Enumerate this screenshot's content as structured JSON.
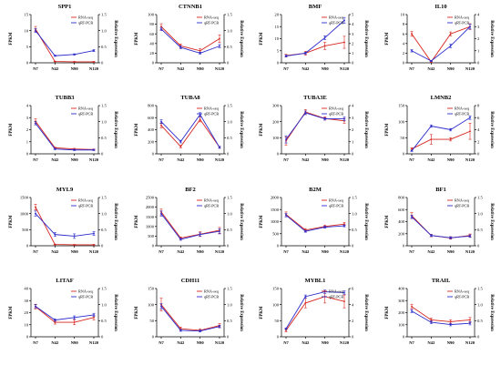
{
  "colors": {
    "rna": "#d7261e",
    "qpcr": "#2b2bcc",
    "axis": "#000000"
  },
  "legend": {
    "rna": "RNA-seq",
    "qpcr": "qRT-PCR"
  },
  "chart_data": [
    {
      "type": "line",
      "title": "SPP1",
      "ylabel": "FPKM",
      "y2label": "Relative Expression",
      "categories": [
        "N7",
        "N42",
        "N90",
        "N120"
      ],
      "ylim": [
        0,
        15
      ],
      "yticks": [
        "0",
        "5",
        "10",
        "15"
      ],
      "y2lim": [
        0,
        1.5
      ],
      "y2ticks": [
        "0",
        "0.5",
        "1.0",
        "1.5"
      ],
      "series": [
        {
          "name": "RNA-seq",
          "values": [
            10.5,
            0.4,
            0.3,
            0.3
          ],
          "errors": [
            0.8,
            0.1,
            0.1,
            0.1
          ]
        },
        {
          "name": "qRT-PCR",
          "values": [
            1.0,
            0.22,
            0.26,
            0.38
          ],
          "errors": [
            0.06,
            0.02,
            0.02,
            0.03
          ]
        }
      ]
    },
    {
      "type": "line",
      "title": "CTNNB1",
      "ylabel": "FPKM",
      "y2label": "Relative Expression",
      "categories": [
        "N7",
        "N42",
        "N90",
        "N120"
      ],
      "ylim": [
        0,
        100
      ],
      "yticks": [
        "0",
        "20",
        "40",
        "60",
        "80",
        "100"
      ],
      "y2lim": [
        0,
        1.5
      ],
      "y2ticks": [
        "0",
        "0.5",
        "1.0",
        "1.5"
      ],
      "series": [
        {
          "name": "RNA-seq",
          "values": [
            75,
            35,
            25,
            50
          ],
          "errors": [
            6,
            4,
            4,
            8
          ]
        },
        {
          "name": "qRT-PCR",
          "values": [
            1.05,
            0.48,
            0.3,
            0.52
          ],
          "errors": [
            0.05,
            0.04,
            0.03,
            0.05
          ]
        }
      ]
    },
    {
      "type": "line",
      "title": "BMF",
      "ylabel": "FPKM",
      "y2label": "Relative Expression",
      "categories": [
        "N7",
        "N42",
        "N90",
        "N120"
      ],
      "ylim": [
        0,
        20
      ],
      "yticks": [
        "0",
        "5",
        "10",
        "15",
        "20"
      ],
      "y2lim": [
        0,
        5
      ],
      "y2ticks": [
        "0",
        "1",
        "2",
        "3",
        "4",
        "5"
      ],
      "series": [
        {
          "name": "RNA-seq",
          "values": [
            3,
            4,
            7,
            8.5
          ],
          "errors": [
            0.5,
            0.8,
            1.5,
            2.5
          ]
        },
        {
          "name": "qRT-PCR",
          "values": [
            0.7,
            1.0,
            2.6,
            4.4
          ],
          "errors": [
            0.1,
            0.1,
            0.2,
            0.3
          ]
        }
      ]
    },
    {
      "type": "line",
      "title": "IL10",
      "ylabel": "FPKM",
      "y2label": "Relative Expression",
      "categories": [
        "N7",
        "N42",
        "N90",
        "N120"
      ],
      "ylim": [
        0,
        10
      ],
      "yticks": [
        "0",
        "2",
        "4",
        "6",
        "8",
        "10"
      ],
      "y2lim": [
        0,
        4
      ],
      "y2ticks": [
        "0",
        "1",
        "2",
        "3",
        "4"
      ],
      "series": [
        {
          "name": "RNA-seq",
          "values": [
            6,
            0.2,
            6,
            7.5
          ],
          "errors": [
            0.5,
            0.1,
            0.4,
            0.6
          ]
        },
        {
          "name": "qRT-PCR",
          "values": [
            1.0,
            0.15,
            1.4,
            3.0
          ],
          "errors": [
            0.1,
            0.05,
            0.15,
            0.2
          ]
        }
      ]
    },
    {
      "type": "line",
      "title": "TUBB3",
      "ylabel": "FPKM",
      "y2label": "Relative Expression",
      "categories": [
        "N7",
        "N42",
        "N90",
        "N120"
      ],
      "ylim": [
        0,
        4
      ],
      "yticks": [
        "0",
        "1",
        "2",
        "3",
        "4"
      ],
      "y2lim": [
        0,
        1.5
      ],
      "y2ticks": [
        "0",
        "0.5",
        "1.0",
        "1.5"
      ],
      "series": [
        {
          "name": "RNA-seq",
          "values": [
            2.7,
            0.5,
            0.4,
            0.35
          ],
          "errors": [
            0.2,
            0.05,
            0.05,
            0.05
          ]
        },
        {
          "name": "qRT-PCR",
          "values": [
            0.95,
            0.15,
            0.12,
            0.12
          ],
          "errors": [
            0.05,
            0.02,
            0.02,
            0.02
          ]
        }
      ]
    },
    {
      "type": "line",
      "title": "TUBA8",
      "ylabel": "FPKM",
      "y2label": "Relative Expression",
      "categories": [
        "N7",
        "N42",
        "N90",
        "N120"
      ],
      "ylim": [
        0,
        800
      ],
      "yticks": [
        "0",
        "200",
        "400",
        "600",
        "800"
      ],
      "y2lim": [
        0,
        1.5
      ],
      "y2ticks": [
        "0",
        "0.5",
        "1.0",
        "1.5"
      ],
      "series": [
        {
          "name": "RNA-seq",
          "values": [
            470,
            120,
            570,
            110
          ],
          "errors": [
            40,
            20,
            40,
            15
          ]
        },
        {
          "name": "qRT-PCR",
          "values": [
            1.0,
            0.38,
            1.22,
            0.2
          ],
          "errors": [
            0.06,
            0.04,
            0.06,
            0.03
          ]
        }
      ]
    },
    {
      "type": "line",
      "title": "TUBA3E",
      "ylabel": "FPKM",
      "y2label": "Relative Expression",
      "categories": [
        "N7",
        "N42",
        "N90",
        "N120"
      ],
      "ylim": [
        0,
        300
      ],
      "yticks": [
        "0",
        "100",
        "200",
        "300"
      ],
      "y2lim": [
        0,
        4
      ],
      "y2ticks": [
        "0",
        "1",
        "2",
        "3",
        "4"
      ],
      "series": [
        {
          "name": "RNA-seq",
          "values": [
            80,
            260,
            220,
            205
          ],
          "errors": [
            25,
            15,
            10,
            15
          ]
        },
        {
          "name": "qRT-PCR",
          "values": [
            1.2,
            3.4,
            2.9,
            2.9
          ],
          "errors": [
            0.3,
            0.15,
            0.1,
            0.15
          ]
        }
      ]
    },
    {
      "type": "line",
      "title": "LMNB2",
      "ylabel": "FPKM",
      "y2label": "Relative Expression",
      "categories": [
        "N7",
        "N42",
        "N90",
        "N120"
      ],
      "ylim": [
        0,
        150
      ],
      "yticks": [
        "0",
        "50",
        "100",
        "150"
      ],
      "y2lim": [
        0,
        8
      ],
      "y2ticks": [
        "0",
        "2",
        "4",
        "6",
        "8"
      ],
      "series": [
        {
          "name": "RNA-seq",
          "values": [
            15,
            45,
            45,
            70
          ],
          "errors": [
            4,
            15,
            5,
            25
          ]
        },
        {
          "name": "qRT-PCR",
          "values": [
            0.5,
            4.6,
            4.0,
            6.0
          ],
          "errors": [
            0.1,
            0.2,
            0.2,
            0.3
          ]
        }
      ]
    },
    {
      "type": "line",
      "title": "MYL9",
      "ylabel": "FPKM",
      "y2label": "Relative Expression",
      "categories": [
        "N7",
        "N42",
        "N90",
        "N120"
      ],
      "ylim": [
        0,
        1500
      ],
      "yticks": [
        "0",
        "500",
        "1000",
        "1500"
      ],
      "y2lim": [
        0,
        1.5
      ],
      "y2ticks": [
        "0",
        "0.5",
        "1.0",
        "1.5"
      ],
      "series": [
        {
          "name": "RNA-seq",
          "values": [
            1200,
            40,
            30,
            30
          ],
          "errors": [
            90,
            10,
            10,
            10
          ]
        },
        {
          "name": "qRT-PCR",
          "values": [
            1.0,
            0.35,
            0.3,
            0.38
          ],
          "errors": [
            0.08,
            0.06,
            0.07,
            0.06
          ]
        }
      ]
    },
    {
      "type": "line",
      "title": "BF2",
      "ylabel": "FPKM",
      "y2label": "Relative Expression",
      "categories": [
        "N7",
        "N42",
        "N90",
        "N120"
      ],
      "ylim": [
        0,
        2500
      ],
      "yticks": [
        "0",
        "500",
        "1000",
        "1500",
        "2000",
        "2500"
      ],
      "y2lim": [
        0,
        1.5
      ],
      "y2ticks": [
        "0",
        "0.5",
        "1.0",
        "1.5"
      ],
      "series": [
        {
          "name": "RNA-seq",
          "values": [
            1750,
            400,
            600,
            800
          ],
          "errors": [
            150,
            60,
            120,
            150
          ]
        },
        {
          "name": "qRT-PCR",
          "values": [
            1.0,
            0.2,
            0.35,
            0.45
          ],
          "errors": [
            0.08,
            0.03,
            0.05,
            0.08
          ]
        }
      ]
    },
    {
      "type": "line",
      "title": "B2M",
      "ylabel": "FPKM",
      "y2label": "Relative Expression",
      "categories": [
        "N7",
        "N42",
        "N90",
        "N120"
      ],
      "ylim": [
        0,
        2000
      ],
      "yticks": [
        "0",
        "500",
        "1000",
        "1500",
        "2000"
      ],
      "y2lim": [
        0,
        1.5
      ],
      "y2ticks": [
        "0",
        "0.5",
        "1.0",
        "1.5"
      ],
      "series": [
        {
          "name": "RNA-seq",
          "values": [
            1300,
            650,
            800,
            900
          ],
          "errors": [
            100,
            60,
            60,
            60
          ]
        },
        {
          "name": "qRT-PCR",
          "values": [
            0.95,
            0.45,
            0.58,
            0.62
          ],
          "errors": [
            0.05,
            0.03,
            0.03,
            0.03
          ]
        }
      ]
    },
    {
      "type": "line",
      "title": "BF1",
      "ylabel": "FPKM",
      "y2label": "Relative Expression",
      "categories": [
        "N7",
        "N42",
        "N90",
        "N120"
      ],
      "ylim": [
        0,
        800
      ],
      "yticks": [
        "0",
        "200",
        "400",
        "600",
        "800"
      ],
      "y2lim": [
        0,
        1.5
      ],
      "y2ticks": [
        "0",
        "0.5",
        "1.0",
        "1.5"
      ],
      "series": [
        {
          "name": "RNA-seq",
          "values": [
            500,
            170,
            130,
            170
          ],
          "errors": [
            50,
            20,
            20,
            25
          ]
        },
        {
          "name": "qRT-PCR",
          "values": [
            0.9,
            0.32,
            0.25,
            0.3
          ],
          "errors": [
            0.05,
            0.03,
            0.03,
            0.04
          ]
        }
      ]
    },
    {
      "type": "line",
      "title": "LITAF",
      "ylabel": "FPKM",
      "y2label": "Relative Expression",
      "categories": [
        "N7",
        "N42",
        "N90",
        "N120"
      ],
      "ylim": [
        0,
        40
      ],
      "yticks": [
        "0",
        "10",
        "20",
        "30",
        "40"
      ],
      "y2lim": [
        0,
        1.5
      ],
      "y2ticks": [
        "0",
        "0.5",
        "1.0",
        "1.5"
      ],
      "series": [
        {
          "name": "RNA-seq",
          "values": [
            25,
            12,
            12,
            16
          ],
          "errors": [
            2,
            1.5,
            2,
            2
          ]
        },
        {
          "name": "qRT-PCR",
          "values": [
            0.95,
            0.52,
            0.6,
            0.68
          ],
          "errors": [
            0.05,
            0.04,
            0.05,
            0.05
          ]
        }
      ]
    },
    {
      "type": "line",
      "title": "CDH11",
      "ylabel": "FPKM",
      "y2label": "Relative Expression",
      "categories": [
        "N7",
        "N42",
        "N90",
        "N120"
      ],
      "ylim": [
        0,
        150
      ],
      "yticks": [
        "0",
        "50",
        "100",
        "150"
      ],
      "y2lim": [
        0,
        1.5
      ],
      "y2ticks": [
        "0",
        "0.5",
        "1.0",
        "1.5"
      ],
      "series": [
        {
          "name": "RNA-seq",
          "values": [
            100,
            25,
            20,
            35
          ],
          "errors": [
            20,
            5,
            5,
            6
          ]
        },
        {
          "name": "qRT-PCR",
          "values": [
            0.95,
            0.2,
            0.18,
            0.32
          ],
          "errors": [
            0.08,
            0.03,
            0.03,
            0.04
          ]
        }
      ]
    },
    {
      "type": "line",
      "title": "MYBL1",
      "ylabel": "FPKM",
      "y2label": "Relative Expression",
      "categories": [
        "N7",
        "N42",
        "N90",
        "N120"
      ],
      "ylim": [
        0,
        150
      ],
      "yticks": [
        "0",
        "50",
        "100",
        "150"
      ],
      "y2lim": [
        0,
        6
      ],
      "y2ticks": [
        "0",
        "2",
        "4",
        "6"
      ],
      "series": [
        {
          "name": "RNA-seq",
          "values": [
            20,
            105,
            125,
            110
          ],
          "errors": [
            5,
            15,
            20,
            20
          ]
        },
        {
          "name": "qRT-PCR",
          "values": [
            1.0,
            5.0,
            5.6,
            5.5
          ],
          "errors": [
            0.1,
            0.2,
            0.2,
            0.2
          ]
        }
      ]
    },
    {
      "type": "line",
      "title": "TRAIL",
      "ylabel": "FPKM",
      "y2label": "Relative Expression",
      "categories": [
        "N7",
        "N42",
        "N90",
        "N120"
      ],
      "ylim": [
        0,
        400
      ],
      "yticks": [
        "0",
        "100",
        "200",
        "300",
        "400"
      ],
      "y2lim": [
        0,
        1.5
      ],
      "y2ticks": [
        "0",
        "0.5",
        "1.0",
        "1.5"
      ],
      "series": [
        {
          "name": "RNA-seq",
          "values": [
            250,
            140,
            125,
            140
          ],
          "errors": [
            20,
            15,
            15,
            20
          ]
        },
        {
          "name": "qRT-PCR",
          "values": [
            0.8,
            0.45,
            0.38,
            0.42
          ],
          "errors": [
            0.05,
            0.04,
            0.04,
            0.05
          ]
        }
      ]
    }
  ]
}
